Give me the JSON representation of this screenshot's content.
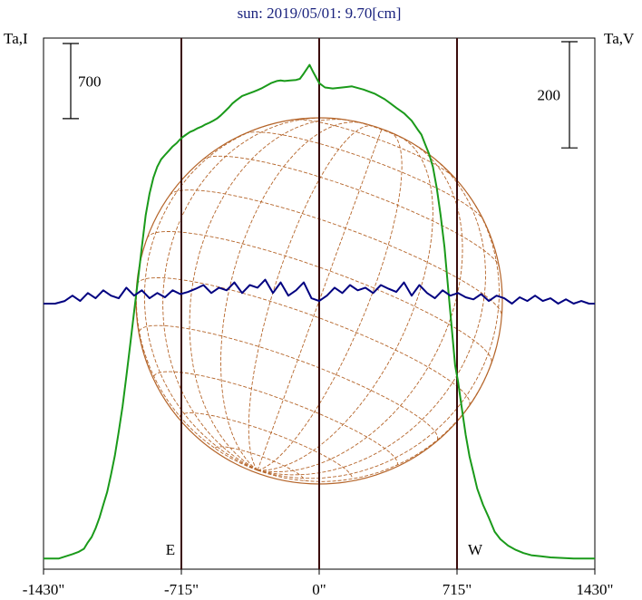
{
  "chart_data": {
    "type": "line",
    "title": "sun: 2019/05/01: 9.70[cm]",
    "left_axis_label": "Ta,I",
    "right_axis_label": "Ta,V",
    "x_ticks": [
      -1430,
      -715,
      0,
      715,
      1430
    ],
    "x_tick_labels": [
      "-1430\"",
      "-715\"",
      "0\"",
      "715\"",
      "1430\""
    ],
    "xlim": [
      -1430,
      1430
    ],
    "limb_markers": [
      {
        "label": "E",
        "x": -715
      },
      {
        "label": "W",
        "x": 715
      }
    ],
    "scale_bars": [
      {
        "axis": "left",
        "label": "700",
        "value": 700
      },
      {
        "axis": "right",
        "label": "200",
        "value": 200
      }
    ],
    "grid": false,
    "series": [
      {
        "color": "#1a9a1a",
        "axis": "left",
        "ylim": [
          -100,
          4850
        ],
        "x": [
          -1430,
          -1350,
          -1280,
          -1250,
          -1220,
          -1200,
          -1180,
          -1160,
          -1140,
          -1120,
          -1100,
          -1080,
          -1060,
          -1040,
          -1020,
          -1000,
          -980,
          -960,
          -940,
          -920,
          -900,
          -880,
          -860,
          -840,
          -820,
          -800,
          -780,
          -760,
          -740,
          -725,
          -710,
          -690,
          -670,
          -650,
          -630,
          -610,
          -590,
          -570,
          -550,
          -530,
          -510,
          -490,
          -470,
          -450,
          -430,
          -400,
          -370,
          -340,
          -320,
          -300,
          -280,
          -250,
          -220,
          -200,
          -180,
          -150,
          -120,
          -100,
          -80,
          -50,
          -30,
          0,
          30,
          70,
          120,
          170,
          230,
          290,
          340,
          370,
          400,
          440,
          480,
          510,
          530,
          550,
          570,
          590,
          610,
          630,
          650,
          670,
          690,
          705,
          720,
          740,
          760,
          780,
          800,
          820,
          850,
          880,
          910,
          940,
          980,
          1020,
          1060,
          1100,
          1150,
          1200,
          1260,
          1320,
          1380,
          1430
        ],
        "values": [
          0,
          0,
          40,
          60,
          90,
          150,
          200,
          280,
          380,
          500,
          620,
          780,
          960,
          1180,
          1420,
          1700,
          2000,
          2300,
          2600,
          2900,
          3200,
          3400,
          3550,
          3650,
          3720,
          3760,
          3800,
          3840,
          3870,
          3900,
          3925,
          3950,
          3975,
          3990,
          4010,
          4025,
          4045,
          4060,
          4080,
          4100,
          4130,
          4165,
          4200,
          4240,
          4270,
          4310,
          4330,
          4350,
          4365,
          4380,
          4400,
          4430,
          4450,
          4455,
          4450,
          4455,
          4460,
          4470,
          4520,
          4600,
          4530,
          4430,
          4390,
          4380,
          4390,
          4400,
          4370,
          4330,
          4280,
          4240,
          4200,
          4150,
          4080,
          4000,
          3950,
          3860,
          3770,
          3650,
          3450,
          3200,
          2900,
          2500,
          2100,
          1800,
          1650,
          1400,
          1150,
          950,
          800,
          650,
          500,
          380,
          250,
          180,
          120,
          80,
          50,
          30,
          20,
          10,
          5,
          0,
          0,
          0
        ]
      },
      {
        "color": "#000080",
        "axis": "right",
        "ylim": [
          -500,
          500
        ],
        "x": [
          -1430,
          -1370,
          -1320,
          -1280,
          -1240,
          -1200,
          -1160,
          -1120,
          -1080,
          -1040,
          -1000,
          -960,
          -920,
          -880,
          -840,
          -800,
          -760,
          -720,
          -680,
          -640,
          -600,
          -560,
          -520,
          -480,
          -440,
          -400,
          -360,
          -320,
          -280,
          -240,
          -200,
          -160,
          -120,
          -80,
          -40,
          0,
          40,
          80,
          120,
          160,
          200,
          240,
          280,
          320,
          360,
          400,
          440,
          480,
          520,
          560,
          600,
          640,
          680,
          720,
          760,
          800,
          840,
          880,
          920,
          960,
          1000,
          1040,
          1080,
          1120,
          1160,
          1200,
          1240,
          1280,
          1320,
          1360,
          1400,
          1430
        ],
        "values": [
          0,
          0,
          5,
          15,
          5,
          20,
          10,
          25,
          15,
          10,
          30,
          15,
          25,
          10,
          20,
          12,
          25,
          18,
          22,
          28,
          35,
          20,
          30,
          25,
          40,
          20,
          35,
          30,
          45,
          20,
          40,
          15,
          25,
          40,
          10,
          5,
          15,
          30,
          20,
          35,
          25,
          30,
          20,
          35,
          28,
          22,
          40,
          15,
          35,
          20,
          10,
          25,
          15,
          20,
          12,
          8,
          18,
          5,
          15,
          10,
          0,
          12,
          5,
          15,
          5,
          10,
          0,
          8,
          0,
          5,
          0,
          0
        ]
      }
    ]
  }
}
